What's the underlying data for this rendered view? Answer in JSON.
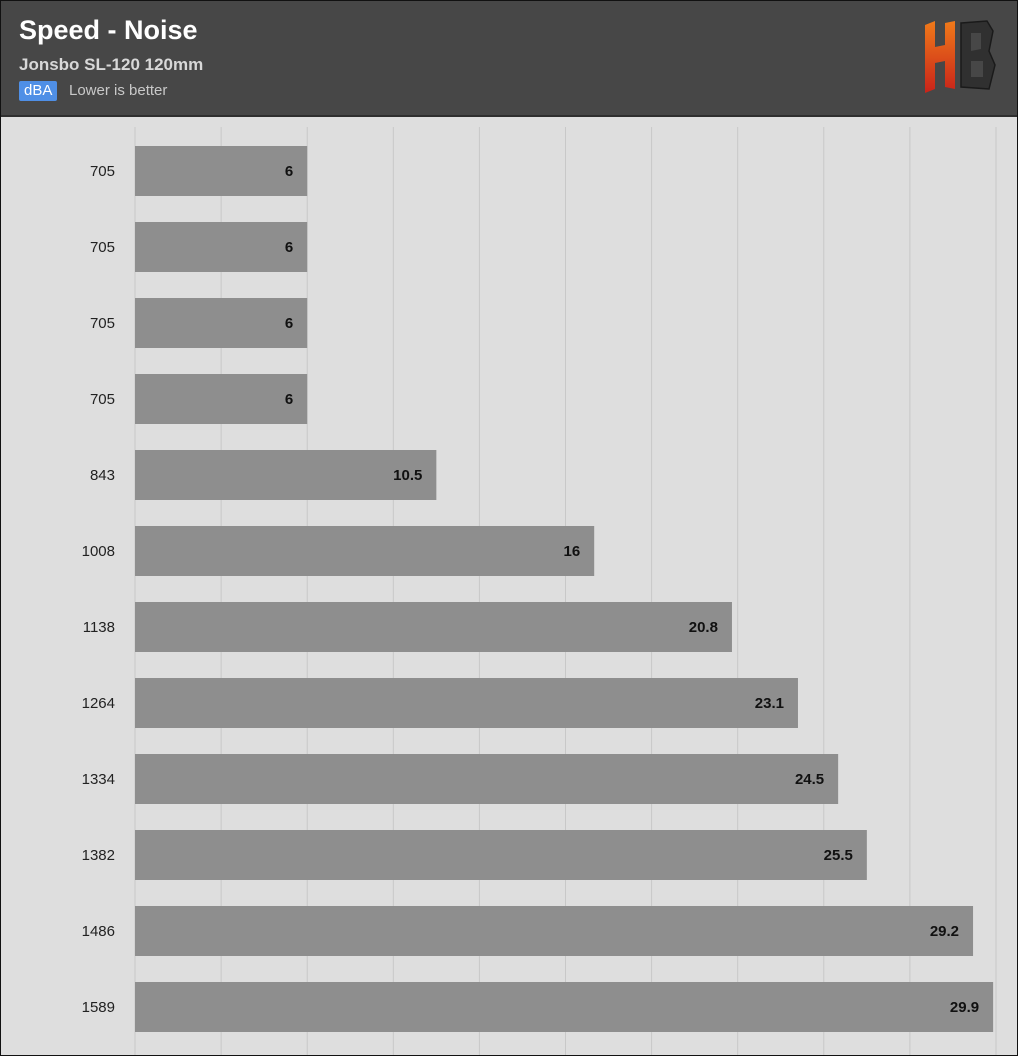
{
  "header": {
    "title": "Speed - Noise",
    "subtitle": "Jonsbo SL-120 120mm",
    "unit_badge": "dBA",
    "note": "Lower is better"
  },
  "colors": {
    "bar": "#8e8e8e",
    "header_bg": "#474747",
    "plot_bg": "#dedede",
    "grid": "#c8c8c8",
    "badge": "#4f8fe6",
    "logo_red": "#e0301e",
    "logo_orange": "#f07a1a"
  },
  "logo_icon": "hb-logo-icon",
  "chart_data": {
    "type": "bar",
    "orientation": "horizontal",
    "title": "Speed - Noise",
    "subtitle": "Jonsbo SL-120 120mm",
    "unit": "dBA",
    "categories": [
      "705",
      "705",
      "705",
      "705",
      "843",
      "1008",
      "1138",
      "1264",
      "1334",
      "1382",
      "1486",
      "1589"
    ],
    "values": [
      6,
      6,
      6,
      6,
      10.5,
      16,
      20.8,
      23.1,
      24.5,
      25.5,
      29.2,
      29.9
    ],
    "xlim": [
      0,
      30
    ],
    "grid": true,
    "legend": "none"
  }
}
